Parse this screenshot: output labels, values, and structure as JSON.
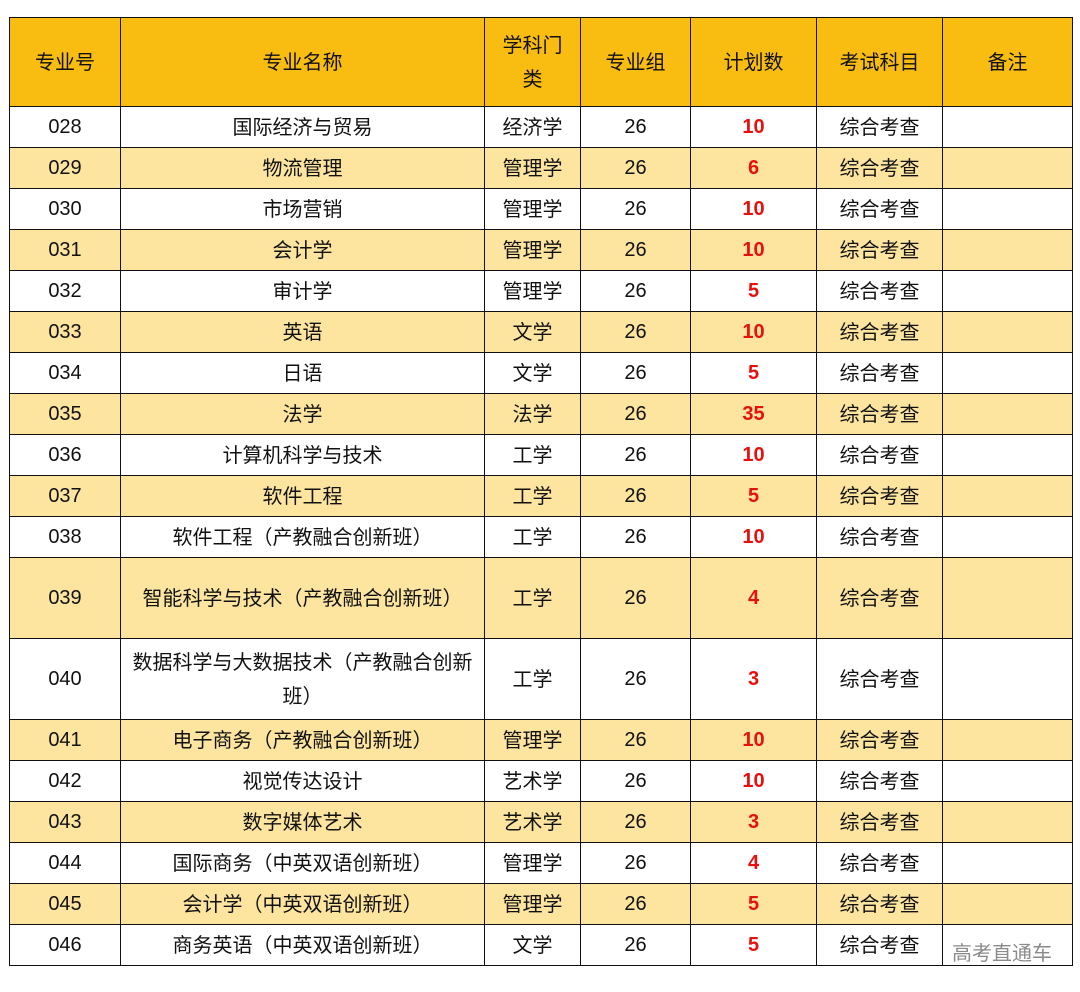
{
  "headers": {
    "code": "专业号",
    "name": "专业名称",
    "category": "学科门类",
    "group": "专业组",
    "count": "计划数",
    "subject": "考试科目",
    "note": "备注"
  },
  "rows": [
    {
      "code": "028",
      "name": "国际经济与贸易",
      "category": "经济学",
      "group": "26",
      "count": "10",
      "subject": "综合考查",
      "note": ""
    },
    {
      "code": "029",
      "name": "物流管理",
      "category": "管理学",
      "group": "26",
      "count": "6",
      "subject": "综合考查",
      "note": ""
    },
    {
      "code": "030",
      "name": "市场营销",
      "category": "管理学",
      "group": "26",
      "count": "10",
      "subject": "综合考查",
      "note": ""
    },
    {
      "code": "031",
      "name": "会计学",
      "category": "管理学",
      "group": "26",
      "count": "10",
      "subject": "综合考查",
      "note": ""
    },
    {
      "code": "032",
      "name": "审计学",
      "category": "管理学",
      "group": "26",
      "count": "5",
      "subject": "综合考查",
      "note": ""
    },
    {
      "code": "033",
      "name": "英语",
      "category": "文学",
      "group": "26",
      "count": "10",
      "subject": "综合考查",
      "note": ""
    },
    {
      "code": "034",
      "name": "日语",
      "category": "文学",
      "group": "26",
      "count": "5",
      "subject": "综合考查",
      "note": ""
    },
    {
      "code": "035",
      "name": "法学",
      "category": "法学",
      "group": "26",
      "count": "35",
      "subject": "综合考查",
      "note": ""
    },
    {
      "code": "036",
      "name": "计算机科学与技术",
      "category": "工学",
      "group": "26",
      "count": "10",
      "subject": "综合考查",
      "note": ""
    },
    {
      "code": "037",
      "name": "软件工程",
      "category": "工学",
      "group": "26",
      "count": "5",
      "subject": "综合考查",
      "note": ""
    },
    {
      "code": "038",
      "name": "软件工程（产教融合创新班）",
      "category": "工学",
      "group": "26",
      "count": "10",
      "subject": "综合考查",
      "note": ""
    },
    {
      "code": "039",
      "name": "智能科学与技术（产教融合创新班）",
      "category": "工学",
      "group": "26",
      "count": "4",
      "subject": "综合考查",
      "note": ""
    },
    {
      "code": "040",
      "name": "数据科学与大数据技术（产教融合创新班）",
      "category": "工学",
      "group": "26",
      "count": "3",
      "subject": "综合考查",
      "note": ""
    },
    {
      "code": "041",
      "name": "电子商务（产教融合创新班）",
      "category": "管理学",
      "group": "26",
      "count": "10",
      "subject": "综合考查",
      "note": ""
    },
    {
      "code": "042",
      "name": "视觉传达设计",
      "category": "艺术学",
      "group": "26",
      "count": "10",
      "subject": "综合考查",
      "note": ""
    },
    {
      "code": "043",
      "name": "数字媒体艺术",
      "category": "艺术学",
      "group": "26",
      "count": "3",
      "subject": "综合考查",
      "note": ""
    },
    {
      "code": "044",
      "name": "国际商务（中英双语创新班）",
      "category": "管理学",
      "group": "26",
      "count": "4",
      "subject": "综合考查",
      "note": ""
    },
    {
      "code": "045",
      "name": "会计学（中英双语创新班）",
      "category": "管理学",
      "group": "26",
      "count": "5",
      "subject": "综合考查",
      "note": ""
    },
    {
      "code": "046",
      "name": "商务英语（中英双语创新班）",
      "category": "文学",
      "group": "26",
      "count": "5",
      "subject": "综合考查",
      "note": ""
    }
  ],
  "watermark": "高考直通车",
  "colors": {
    "header_bg": "#f9bd12",
    "alt_row_bg": "#fde5a0",
    "count_text": "#e6100f"
  }
}
